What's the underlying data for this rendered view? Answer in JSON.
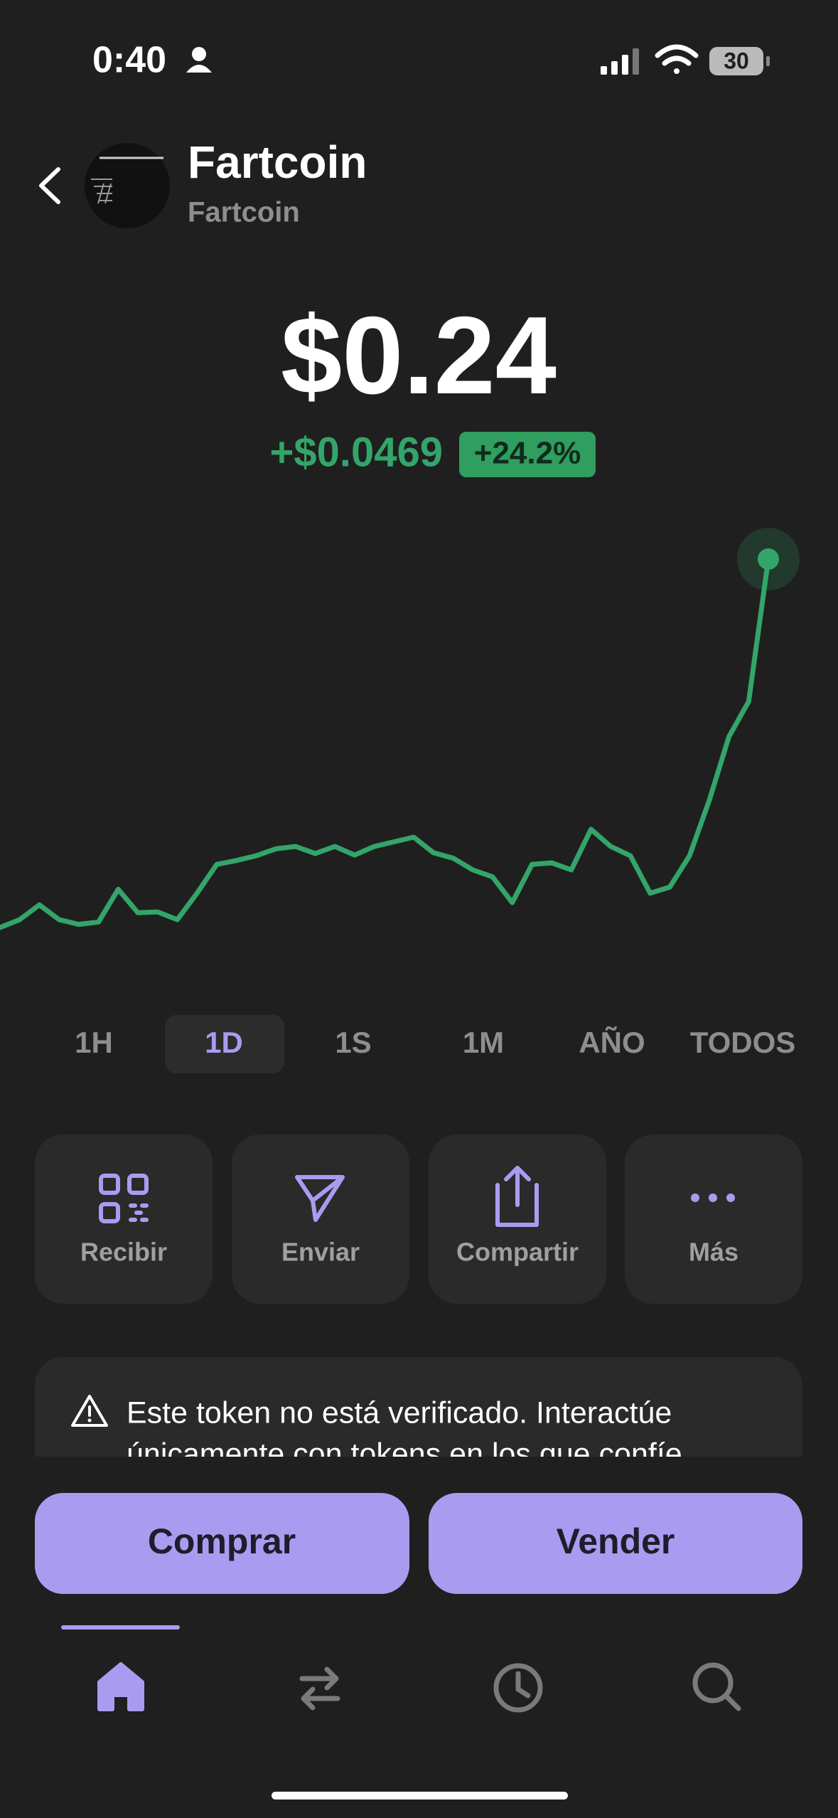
{
  "status_bar": {
    "time": "0:40",
    "battery": "30"
  },
  "header": {
    "title": "Fartcoin",
    "subtitle": "Fartcoin"
  },
  "price": {
    "value": "$0.24",
    "change": "+$0.0469",
    "change_percent": "+24.2%"
  },
  "chart_data": {
    "type": "line",
    "color": "#33a56a",
    "values": [
      0.1927,
      0.1937,
      0.1956,
      0.1937,
      0.1931,
      0.1934,
      0.1976,
      0.1946,
      0.1947,
      0.1937,
      0.1971,
      0.2008,
      0.2013,
      0.2019,
      0.2028,
      0.2031,
      0.2022,
      0.2031,
      0.202,
      0.2031,
      0.2037,
      0.2043,
      0.2023,
      0.2016,
      0.2001,
      0.1992,
      0.1959,
      0.2008,
      0.201,
      0.2001,
      0.2053,
      0.2031,
      0.2019,
      0.1971,
      0.1979,
      0.2019,
      0.209,
      0.2172,
      0.2217,
      0.24
    ]
  },
  "range_tabs": {
    "items": [
      "1H",
      "1D",
      "1S",
      "1M",
      "AÑO",
      "TODOS"
    ],
    "selected": 1
  },
  "actions": [
    "Recibir",
    "Enviar",
    "Compartir",
    "Más"
  ],
  "warning": {
    "line1": "Este token no está verificado. Interactúe",
    "line2": "únicamente con tokens en los que confíe"
  },
  "buttons": {
    "buy": "Comprar",
    "sell": "Vender"
  }
}
